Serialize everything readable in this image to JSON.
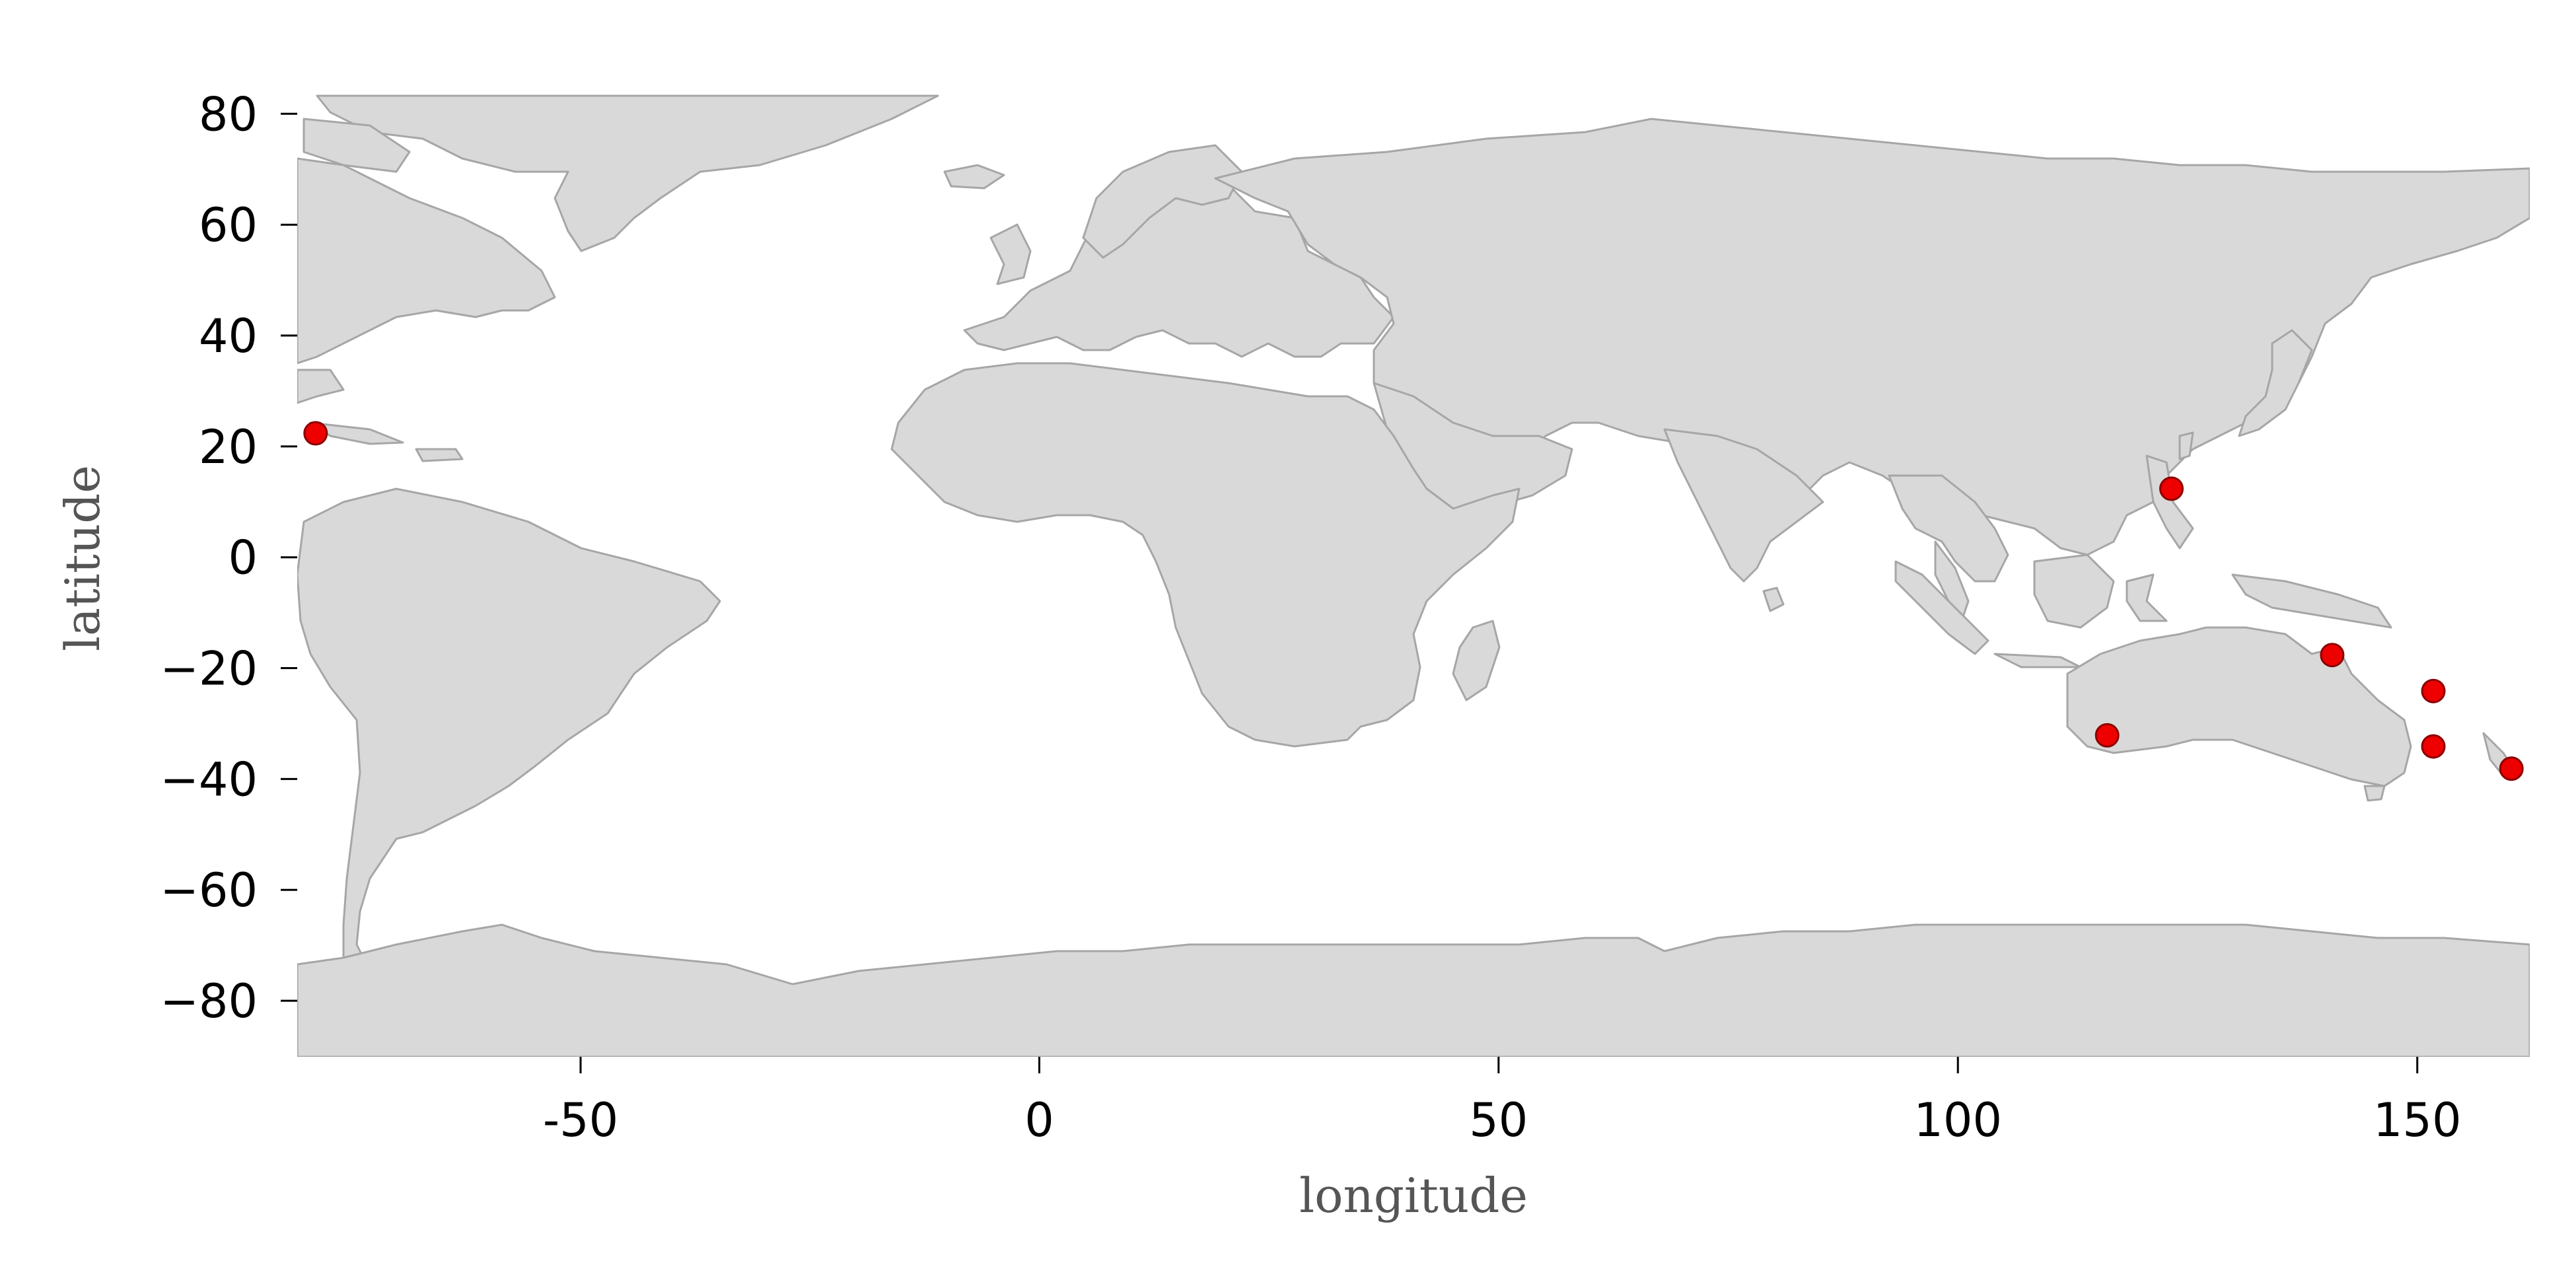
{
  "chart_data": {
    "type": "scatter",
    "title": "",
    "xlabel": "longitude",
    "ylabel": "latitude",
    "xlim": [
      -81,
      162
    ],
    "ylim": [
      -90,
      84
    ],
    "xticks": [
      -50,
      0,
      50,
      100,
      150
    ],
    "yticks": [
      80,
      60,
      40,
      20,
      0,
      -20,
      -40,
      -60,
      -80
    ],
    "xtick_labels": [
      "-50",
      "0",
      "50",
      "100",
      "150"
    ],
    "ytick_labels": [
      "80",
      "60",
      "40",
      "20",
      "0",
      "−20",
      "−40",
      "−60",
      "−80"
    ],
    "grid": false,
    "basemap": "world country borders",
    "land_color": "#d9d9d9",
    "border_color": "#a6a6a6",
    "point_color": "#ee0000",
    "points": [
      {
        "x": -79,
        "y": 22.5
      },
      {
        "x": 123,
        "y": 12.5
      },
      {
        "x": 140.5,
        "y": -17.5
      },
      {
        "x": 151.5,
        "y": -24
      },
      {
        "x": 151.5,
        "y": -34
      },
      {
        "x": 116,
        "y": -32
      },
      {
        "x": 160,
        "y": -38
      }
    ]
  }
}
